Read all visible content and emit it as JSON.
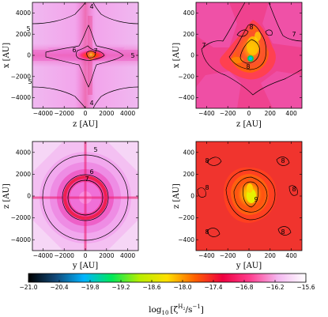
{
  "colors": {
    "colormap": [
      "#000000",
      "#124a7a",
      "#00b4ff",
      "#00e85a",
      "#b7ee00",
      "#ffe000",
      "#ff6000",
      "#ee0040",
      "#ff4090",
      "#f4b8f0",
      "#ffffff"
    ]
  },
  "chart_data": {
    "type": "heatmap",
    "colorbar": {
      "ticks": [
        "-21.0",
        "-20.4",
        "-19.8",
        "-19.2",
        "-18.6",
        "-18.0",
        "-17.4",
        "-16.8",
        "-16.2",
        "-15.6"
      ],
      "range": [
        -21.0,
        -15.6
      ],
      "label": "log₁₀ [ζ^{H₂}/s⁻¹]",
      "label_main": "log",
      "label_sub": "10",
      "label_zeta": "[ζ",
      "label_sup": "H",
      "label_sup2": "2",
      "label_tail": "/s",
      "label_exp": "−1",
      "label_close": "]"
    },
    "panels": [
      {
        "id": "top-left",
        "xlabel": "z [AU]",
        "ylabel": "x [AU]",
        "xlim": [
          -5000,
          5000
        ],
        "ylim": [
          -5000,
          5000
        ],
        "xticks": [
          "−4000",
          "−2000",
          "0",
          "2000",
          "4000"
        ],
        "yticks": [
          "4000",
          "2000",
          "0",
          "−2000",
          "−4000"
        ],
        "background_value": -16.0,
        "contour_labels": [
          "4",
          "5",
          "6",
          "7",
          "5",
          "5",
          "4"
        ]
      },
      {
        "id": "top-right",
        "xlabel": "z [AU]",
        "ylabel": "x [AU]",
        "xlim": [
          -500,
          500
        ],
        "ylim": [
          -500,
          500
        ],
        "xticks": [
          "−400",
          "−200",
          "0",
          "200",
          "400"
        ],
        "yticks": [
          "400",
          "200",
          "0",
          "−200",
          "−400"
        ],
        "background_value": -16.5,
        "contour_labels": [
          "7",
          "7",
          "8",
          "8"
        ]
      },
      {
        "id": "bottom-left",
        "xlabel": "y [AU]",
        "ylabel": "z [AU]",
        "xlim": [
          -5000,
          5000
        ],
        "ylim": [
          -5000,
          5000
        ],
        "xticks": [
          "−4000",
          "−2000",
          "0",
          "2000",
          "4000"
        ],
        "yticks": [
          "4000",
          "2000",
          "0",
          "−2000",
          "−4000"
        ],
        "background_value": -15.9,
        "contour_labels": [
          "5",
          "6",
          "7"
        ]
      },
      {
        "id": "bottom-right",
        "xlabel": "y [AU]",
        "ylabel": "z [AU]",
        "xlim": [
          -500,
          500
        ],
        "ylim": [
          -500,
          500
        ],
        "xticks": [
          "−400",
          "−200",
          "0",
          "200",
          "400"
        ],
        "yticks": [
          "400",
          "200",
          "0",
          "−200",
          "−400"
        ],
        "background_value": -17.2,
        "contour_labels": [
          "8",
          "8",
          "8",
          "8",
          "8",
          "8",
          "9"
        ]
      }
    ]
  }
}
